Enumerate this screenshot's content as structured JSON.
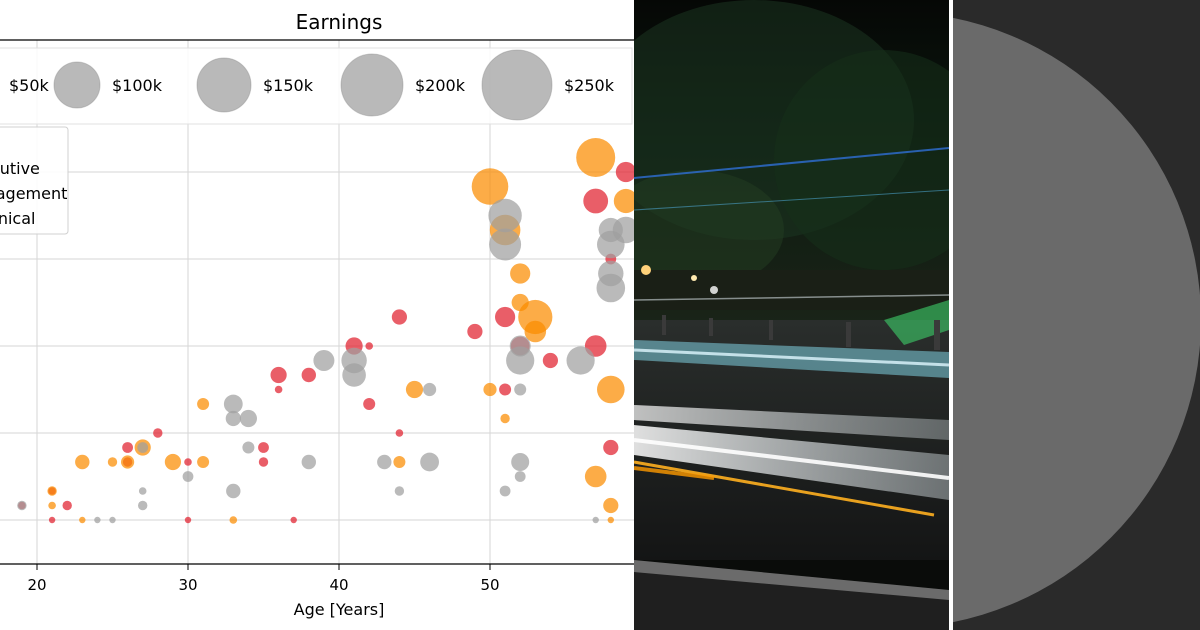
{
  "chart_data": {
    "type": "scatter",
    "title": "Earnings",
    "xlabel": "Age [Years]",
    "ylabel": "",
    "xlim": [
      17.5,
      59.5
    ],
    "x_ticks": [
      20,
      30,
      40,
      50
    ],
    "grid": true,
    "size_legend": {
      "labels": [
        "$50k",
        "$100k",
        "$150k",
        "$200k",
        "$250k"
      ],
      "values": [
        50,
        100,
        150,
        200,
        250
      ],
      "placement": "top"
    },
    "category_legend": {
      "labels": [
        "Executive",
        "Management",
        "Technical"
      ],
      "placement": "upper-left"
    },
    "colors": {
      "Executive": "#e0202e",
      "Management": "#fb8c00",
      "Technical": "#a0a0a0",
      "legend_bubble": "#9e9e9e"
    },
    "series": [
      {
        "name": "Executive",
        "points": [
          [
            19,
            1,
            10
          ],
          [
            21,
            2,
            10
          ],
          [
            21,
            0,
            7
          ],
          [
            22,
            1,
            15
          ],
          [
            26,
            4,
            15
          ],
          [
            26,
            5,
            20
          ],
          [
            28,
            6,
            15
          ],
          [
            30,
            0,
            7
          ],
          [
            30,
            4,
            10
          ],
          [
            35,
            5,
            20
          ],
          [
            35,
            4,
            15
          ],
          [
            36,
            10,
            45
          ],
          [
            36,
            9,
            10
          ],
          [
            37,
            0,
            7
          ],
          [
            38,
            10,
            35
          ],
          [
            41,
            12,
            50
          ],
          [
            42,
            12,
            10
          ],
          [
            42,
            8,
            25
          ],
          [
            44,
            14,
            40
          ],
          [
            44,
            6,
            10
          ],
          [
            49,
            13,
            40
          ],
          [
            51,
            14,
            70
          ],
          [
            51,
            9,
            25
          ],
          [
            52,
            12,
            60
          ],
          [
            54,
            11,
            40
          ],
          [
            57,
            22,
            105
          ],
          [
            57,
            12,
            80
          ],
          [
            58,
            18,
            20
          ],
          [
            58,
            5,
            40
          ],
          [
            59,
            24,
            70
          ]
        ]
      },
      {
        "name": "Management",
        "points": [
          [
            21,
            1,
            10
          ],
          [
            21,
            2,
            15
          ],
          [
            23,
            0,
            7
          ],
          [
            23,
            4,
            35
          ],
          [
            25,
            4,
            15
          ],
          [
            26,
            4,
            30
          ],
          [
            27,
            5,
            45
          ],
          [
            29,
            4,
            45
          ],
          [
            31,
            8,
            25
          ],
          [
            31,
            4,
            25
          ],
          [
            33,
            0,
            10
          ],
          [
            44,
            4,
            25
          ],
          [
            45,
            9,
            50
          ],
          [
            50,
            9,
            30
          ],
          [
            50,
            23,
            230
          ],
          [
            51,
            7,
            15
          ],
          [
            51,
            20,
            160
          ],
          [
            52,
            15,
            50
          ],
          [
            52,
            17,
            70
          ],
          [
            53,
            13,
            80
          ],
          [
            53,
            14,
            200
          ],
          [
            57,
            25,
            260
          ],
          [
            57,
            3,
            80
          ],
          [
            58,
            1,
            40
          ],
          [
            58,
            9,
            130
          ],
          [
            58,
            0,
            7
          ],
          [
            59,
            22,
            100
          ]
        ]
      },
      {
        "name": "Technical",
        "points": [
          [
            19,
            1,
            15
          ],
          [
            24,
            0,
            7
          ],
          [
            25,
            0,
            7
          ],
          [
            27,
            5,
            20
          ],
          [
            27,
            1,
            15
          ],
          [
            27,
            2,
            10
          ],
          [
            30,
            3,
            20
          ],
          [
            33,
            8,
            60
          ],
          [
            33,
            7,
            40
          ],
          [
            33,
            2,
            35
          ],
          [
            34,
            5,
            25
          ],
          [
            34,
            7,
            50
          ],
          [
            38,
            4,
            35
          ],
          [
            39,
            11,
            75
          ],
          [
            41,
            11,
            110
          ],
          [
            41,
            10,
            95
          ],
          [
            43,
            4,
            35
          ],
          [
            44,
            2,
            15
          ],
          [
            46,
            9,
            30
          ],
          [
            46,
            4,
            60
          ],
          [
            51,
            19,
            175
          ],
          [
            51,
            21,
            190
          ],
          [
            51,
            2,
            20
          ],
          [
            52,
            12,
            75
          ],
          [
            52,
            9,
            25
          ],
          [
            52,
            3,
            20
          ],
          [
            52,
            4,
            55
          ],
          [
            56,
            11,
            135
          ],
          [
            57,
            0,
            7
          ],
          [
            58,
            20,
            100
          ],
          [
            58,
            16,
            140
          ],
          [
            58,
            17,
            110
          ],
          [
            58,
            19,
            130
          ],
          [
            59,
            20,
            120
          ],
          [
            52,
            11,
            135
          ]
        ]
      }
    ]
  },
  "photo": {
    "alt": "Night street with light trails"
  },
  "disc": {
    "alt": "Gray disc"
  }
}
